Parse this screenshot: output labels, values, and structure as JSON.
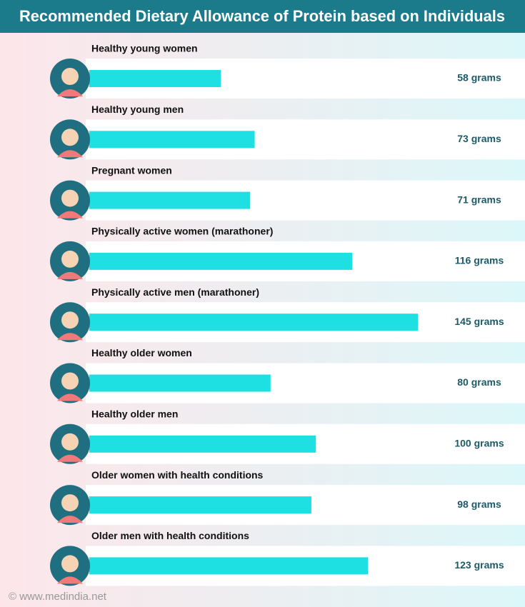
{
  "chart_data": {
    "type": "bar",
    "orientation": "horizontal",
    "title": "Recommended Dietary Allowance of Protein based on Individuals",
    "categories": [
      "Healthy young women",
      "Healthy young men",
      "Pregnant women",
      "Physically active women (marathoner)",
      "Physically active men (marathoner)",
      "Healthy older women",
      "Healthy older men",
      "Older women with health conditions",
      "Older men with health conditions"
    ],
    "values": [
      58,
      73,
      71,
      116,
      145,
      80,
      100,
      98,
      123
    ],
    "value_labels": [
      "58 grams",
      "73 grams",
      "71 grams",
      "116 grams",
      "145 grams",
      "80 grams",
      "100 grams",
      "98 grams",
      "123 grams"
    ],
    "color": "#1ee0e3",
    "footer": "© www.medindia.net"
  }
}
